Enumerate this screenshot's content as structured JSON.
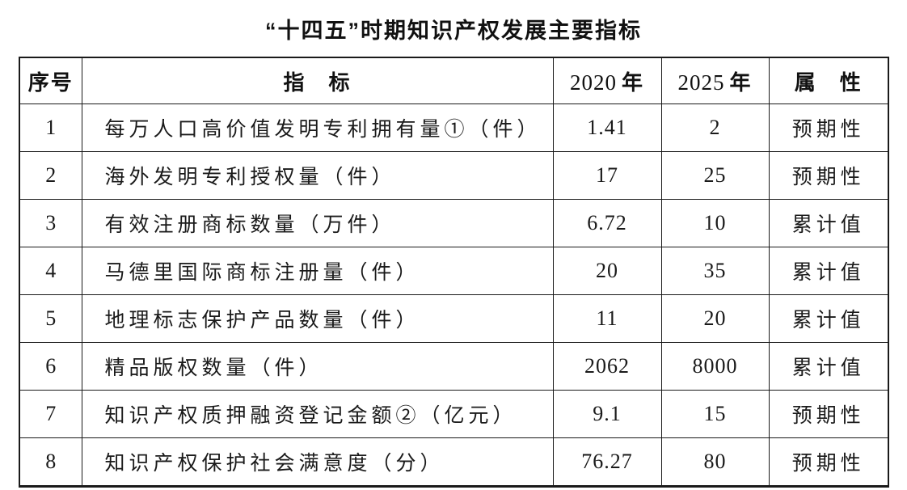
{
  "title": "“十四五”时期知识产权发展主要指标",
  "colors": {
    "background": "#ffffff",
    "ink": "#1a1a1a"
  },
  "table": {
    "headers": {
      "index": "序号",
      "indicator": "指　标",
      "y2020": {
        "num": "2020",
        "unit": "年"
      },
      "y2025": {
        "num": "2025",
        "unit": "年"
      },
      "attribute": "属　性"
    },
    "rows": [
      {
        "no": "1",
        "indicator": "每万人口高价值发明专利拥有量①（件）",
        "y2020": "1.41",
        "y2025": "2",
        "attribute": "预期性"
      },
      {
        "no": "2",
        "indicator": "海外发明专利授权量（件）",
        "y2020": "17",
        "y2025": "25",
        "attribute": "预期性"
      },
      {
        "no": "3",
        "indicator": "有效注册商标数量（万件）",
        "y2020": "6.72",
        "y2025": "10",
        "attribute": "累计值"
      },
      {
        "no": "4",
        "indicator": "马德里国际商标注册量（件）",
        "y2020": "20",
        "y2025": "35",
        "attribute": "累计值"
      },
      {
        "no": "5",
        "indicator": "地理标志保护产品数量（件）",
        "y2020": "11",
        "y2025": "20",
        "attribute": "累计值"
      },
      {
        "no": "6",
        "indicator": "精品版权数量（件）",
        "y2020": "2062",
        "y2025": "8000",
        "attribute": "累计值"
      },
      {
        "no": "7",
        "indicator": "知识产权质押融资登记金额②（亿元）",
        "y2020": "9.1",
        "y2025": "15",
        "attribute": "预期性"
      },
      {
        "no": "8",
        "indicator": "知识产权保护社会满意度（分）",
        "y2020": "76.27",
        "y2025": "80",
        "attribute": "预期性"
      }
    ]
  }
}
